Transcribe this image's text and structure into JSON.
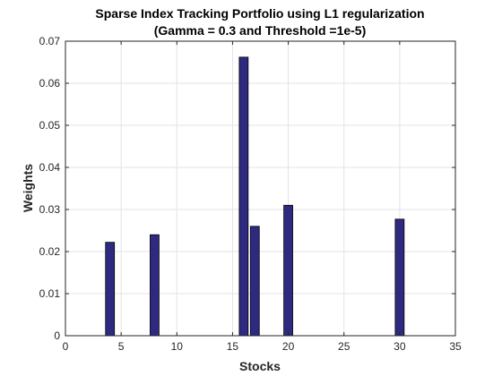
{
  "chart_data": {
    "type": "bar",
    "title_line1": "Sparse Index Tracking Portfolio using L1 regularization",
    "title_line2": "(Gamma = 0.3 and Threshold =1e-5)",
    "xlabel": "Stocks",
    "ylabel": "Weights",
    "xlim": [
      0,
      35
    ],
    "ylim": [
      0,
      0.07
    ],
    "xticks": [
      0,
      5,
      10,
      15,
      20,
      25,
      30,
      35
    ],
    "yticks": [
      0,
      0.01,
      0.02,
      0.03,
      0.04,
      0.05,
      0.06,
      0.07
    ],
    "grid": true,
    "bar_color": "#2E2A80",
    "x": [
      4,
      8,
      16,
      17,
      20,
      30
    ],
    "values": [
      0.0222,
      0.024,
      0.0662,
      0.026,
      0.031,
      0.0277
    ]
  }
}
